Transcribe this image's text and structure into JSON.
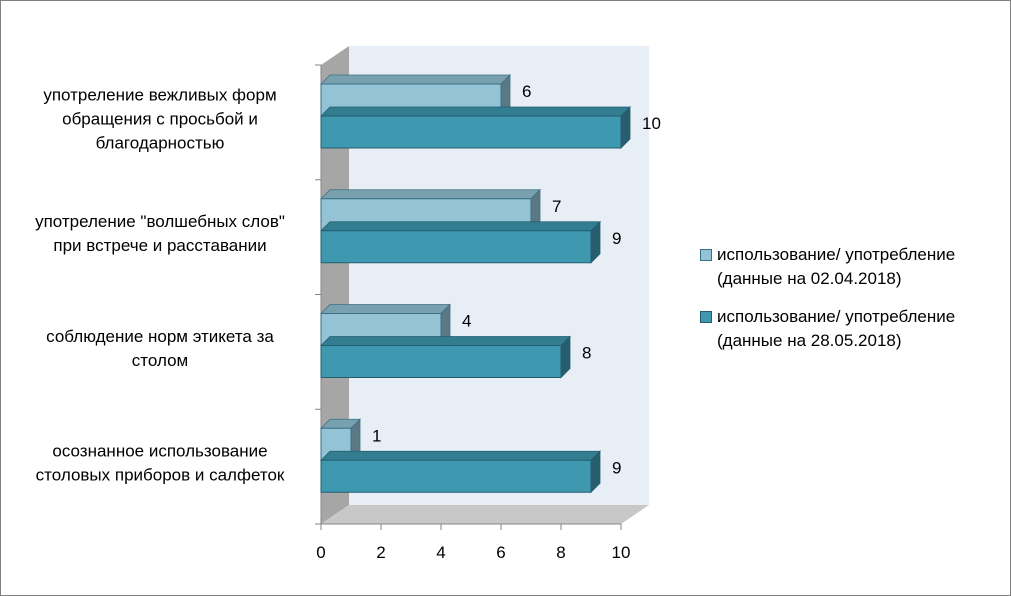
{
  "chart_data": {
    "type": "bar",
    "orientation": "horizontal",
    "three_d": true,
    "title": "",
    "xlabel": "",
    "ylabel": "",
    "xlim": [
      0,
      10
    ],
    "x_ticks": [
      0,
      2,
      4,
      6,
      8,
      10
    ],
    "grid": false,
    "legend_position": "right",
    "categories": [
      [
        "употреление вежливых форм",
        "обращения с просьбой и",
        "благодарностью"
      ],
      [
        "употреление \"волшебных слов\"",
        "при встрече и расставании"
      ],
      [
        "соблюдение норм этикета за",
        "столом"
      ],
      [
        "осознанное использование",
        "столовых приборов и салфеток"
      ]
    ],
    "series": [
      {
        "name": [
          "использование/ употребление",
          "(данные на 02.04.2018)"
        ],
        "values": [
          6,
          7,
          4,
          1
        ],
        "color": "#93c3d5",
        "edge_color": "#3b6f86"
      },
      {
        "name": [
          "использование/ употребление",
          "(данные на 28.05.2018)"
        ],
        "values": [
          10,
          9,
          8,
          9
        ],
        "color": "#3e98b0",
        "edge_color": "#245d70"
      }
    ],
    "colors": {
      "back_wall": "#e8eef6",
      "side_wall": "#a6a6a6",
      "floor": "#c8c8c8",
      "axis": "#868686"
    }
  }
}
